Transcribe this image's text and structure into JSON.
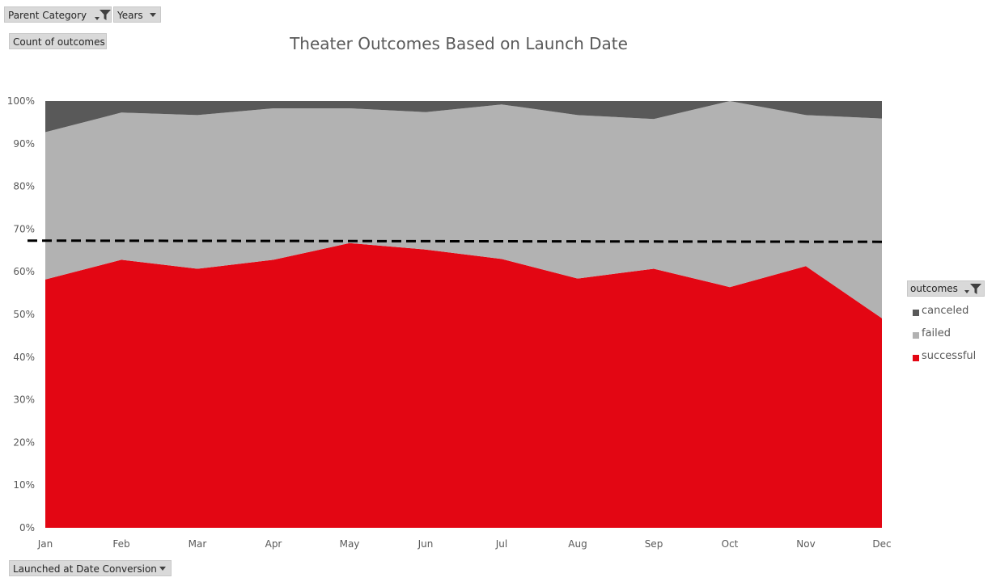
{
  "filters": {
    "parent_category": "Parent Category",
    "years": "Years",
    "count_label": "Count of outcomes",
    "axis_field": "Launched at Date Conversion"
  },
  "legend": {
    "title": "outcomes",
    "items": [
      {
        "label": "canceled",
        "color": "#595959"
      },
      {
        "label": "failed",
        "color": "#b2b2b2"
      },
      {
        "label": "successful",
        "color": "#e30613"
      }
    ]
  },
  "chart_data": {
    "type": "area",
    "stacked": "percent",
    "title": "Theater Outcomes Based on Launch Date",
    "categories": [
      "Jan",
      "Feb",
      "Mar",
      "Apr",
      "May",
      "Jun",
      "Jul",
      "Aug",
      "Sep",
      "Oct",
      "Nov",
      "Dec"
    ],
    "y_ticks": [
      "0%",
      "10%",
      "20%",
      "30%",
      "40%",
      "50%",
      "60%",
      "70%",
      "80%",
      "90%",
      "100%"
    ],
    "ylim": [
      0,
      100
    ],
    "series": [
      {
        "name": "successful",
        "color": "#e30613",
        "values": [
          58.2,
          62.8,
          60.7,
          62.8,
          66.7,
          65.2,
          63.0,
          58.4,
          60.7,
          56.4,
          61.3,
          49.1
        ]
      },
      {
        "name": "failed",
        "color": "#b2b2b2",
        "values": [
          34.5,
          34.5,
          36.0,
          35.5,
          31.6,
          32.2,
          36.2,
          38.3,
          35.1,
          43.6,
          35.4,
          46.8
        ]
      },
      {
        "name": "canceled",
        "color": "#595959",
        "values": [
          7.3,
          2.7,
          3.3,
          1.7,
          1.7,
          2.6,
          0.8,
          3.3,
          4.2,
          0.0,
          3.3,
          4.1
        ]
      }
    ],
    "trendline": {
      "style": "dashed",
      "color": "#000000",
      "start": 67.3,
      "end": 67.0
    },
    "legend_position": "right",
    "grid": false
  }
}
